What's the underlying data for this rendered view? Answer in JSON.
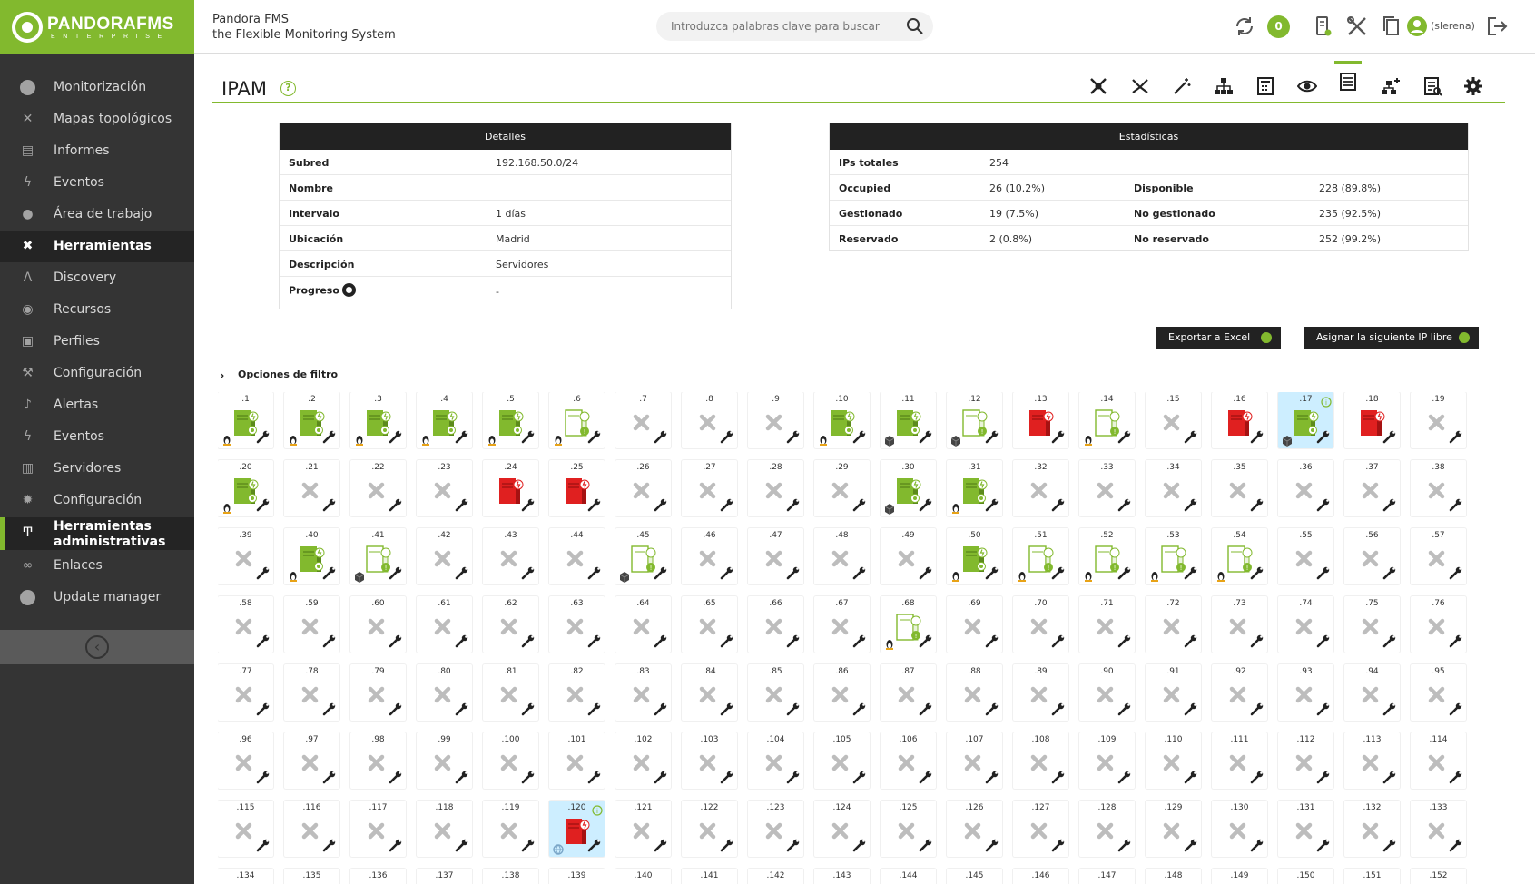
{
  "brand": {
    "logo_text": "PANDORAFMS",
    "logo_sub": "ENTERPRISE",
    "line1": "Pandora FMS",
    "line2": "the Flexible Monitoring System",
    "accent_color": "#82b92e"
  },
  "header": {
    "search_placeholder": "Introduzca palabras clave para buscar",
    "notification_count": "0",
    "user": "(slerena)"
  },
  "sidebar": {
    "items": [
      {
        "label": "Monitorización",
        "icon": "monitor-icon"
      },
      {
        "label": "Mapas topológicos",
        "icon": "topology-icon"
      },
      {
        "label": "Informes",
        "icon": "reports-icon"
      },
      {
        "label": "Eventos",
        "icon": "lightning-icon"
      },
      {
        "label": "Área de trabajo",
        "icon": "user-icon"
      },
      {
        "label": "Herramientas",
        "icon": "tools-icon"
      },
      {
        "label": "Discovery",
        "icon": "discovery-icon"
      },
      {
        "label": "Recursos",
        "icon": "resources-icon"
      },
      {
        "label": "Perfiles",
        "icon": "profile-icon"
      },
      {
        "label": "Configuración",
        "icon": "wrench-icon"
      },
      {
        "label": "Alertas",
        "icon": "bell-icon"
      },
      {
        "label": "Eventos",
        "icon": "lightning-icon"
      },
      {
        "label": "Servidores",
        "icon": "server-icon"
      },
      {
        "label": "Configuración",
        "icon": "gear-icon"
      },
      {
        "label": "Herramientas administrativas",
        "icon": "admin-tools-icon"
      },
      {
        "label": "Enlaces",
        "icon": "link-icon"
      },
      {
        "label": "Update manager",
        "icon": "update-icon"
      }
    ]
  },
  "page": {
    "title": "IPAM",
    "help": "?"
  },
  "details": {
    "header": "Detalles",
    "rows": [
      {
        "key": "Subred",
        "value": "192.168.50.0/24"
      },
      {
        "key": "Nombre",
        "value": ""
      },
      {
        "key": "Intervalo",
        "value": "1 días"
      },
      {
        "key": "Ubicación",
        "value": "Madrid"
      },
      {
        "key": "Descripción",
        "value": "Servidores"
      },
      {
        "key": "Progreso",
        "value": "-"
      }
    ]
  },
  "stats": {
    "header": "Estadísticas",
    "total_label": "IPs totales",
    "total_value": "254",
    "rows": [
      {
        "k1": "Occupied",
        "v1": "26 (10.2%)",
        "k2": "Disponible",
        "v2": "228 (89.8%)"
      },
      {
        "k1": "Gestionado",
        "v1": "19 (7.5%)",
        "k2": "No gestionado",
        "v2": "235 (92.5%)"
      },
      {
        "k1": "Reservado",
        "v1": "2 (0.8%)",
        "k2": "No reservado",
        "v2": "252 (99.2%)"
      }
    ]
  },
  "actions": {
    "export": "Exportar a Excel",
    "assign": "Asignar la siguiente IP libre"
  },
  "filter": {
    "label": "Opciones de filtro",
    "chevron": "›"
  },
  "ip_grid": {
    "columns": 19,
    "cells": [
      {
        "ip": ".1",
        "s": "gm",
        "os": "linux"
      },
      {
        "ip": ".2",
        "s": "gm",
        "os": "linux"
      },
      {
        "ip": ".3",
        "s": "gm",
        "os": "linux"
      },
      {
        "ip": ".4",
        "s": "gm",
        "os": "linux"
      },
      {
        "ip": ".5",
        "s": "gm",
        "os": "linux"
      },
      {
        "ip": ".6",
        "s": "go",
        "os": "linux"
      },
      {
        "ip": ".7",
        "s": "x"
      },
      {
        "ip": ".8",
        "s": "x"
      },
      {
        "ip": ".9",
        "s": "x"
      },
      {
        "ip": ".10",
        "s": "gm",
        "os": "linux"
      },
      {
        "ip": ".11",
        "s": "gm",
        "os": "box"
      },
      {
        "ip": ".12",
        "s": "go",
        "os": "box"
      },
      {
        "ip": ".13",
        "s": "r"
      },
      {
        "ip": ".14",
        "s": "go",
        "os": "linux"
      },
      {
        "ip": ".15",
        "s": "x"
      },
      {
        "ip": ".16",
        "s": "r"
      },
      {
        "ip": ".17",
        "s": "gm",
        "os": "box",
        "hl": true,
        "info": true
      },
      {
        "ip": ".18",
        "s": "r"
      },
      {
        "ip": ".19",
        "s": "x"
      },
      {
        "ip": ".20",
        "s": "gm",
        "os": "linux"
      },
      {
        "ip": ".21",
        "s": "x"
      },
      {
        "ip": ".22",
        "s": "x"
      },
      {
        "ip": ".23",
        "s": "x"
      },
      {
        "ip": ".24",
        "s": "r"
      },
      {
        "ip": ".25",
        "s": "r"
      },
      {
        "ip": ".26",
        "s": "x"
      },
      {
        "ip": ".27",
        "s": "x"
      },
      {
        "ip": ".28",
        "s": "x"
      },
      {
        "ip": ".29",
        "s": "x"
      },
      {
        "ip": ".30",
        "s": "gm",
        "os": "box"
      },
      {
        "ip": ".31",
        "s": "gm",
        "os": "linux"
      },
      {
        "ip": ".32",
        "s": "x"
      },
      {
        "ip": ".33",
        "s": "x"
      },
      {
        "ip": ".34",
        "s": "x"
      },
      {
        "ip": ".35",
        "s": "x"
      },
      {
        "ip": ".36",
        "s": "x"
      },
      {
        "ip": ".37",
        "s": "x"
      },
      {
        "ip": ".38",
        "s": "x"
      },
      {
        "ip": ".39",
        "s": "x"
      },
      {
        "ip": ".40",
        "s": "gm",
        "os": "linux"
      },
      {
        "ip": ".41",
        "s": "go",
        "os": "box"
      },
      {
        "ip": ".42",
        "s": "x"
      },
      {
        "ip": ".43",
        "s": "x"
      },
      {
        "ip": ".44",
        "s": "x"
      },
      {
        "ip": ".45",
        "s": "go",
        "os": "box"
      },
      {
        "ip": ".46",
        "s": "x"
      },
      {
        "ip": ".47",
        "s": "x"
      },
      {
        "ip": ".48",
        "s": "x"
      },
      {
        "ip": ".49",
        "s": "x"
      },
      {
        "ip": ".50",
        "s": "gm",
        "os": "linux"
      },
      {
        "ip": ".51",
        "s": "go",
        "os": "linux"
      },
      {
        "ip": ".52",
        "s": "go",
        "os": "linux"
      },
      {
        "ip": ".53",
        "s": "go",
        "os": "linux"
      },
      {
        "ip": ".54",
        "s": "go",
        "os": "linux"
      },
      {
        "ip": ".55",
        "s": "x"
      },
      {
        "ip": ".56",
        "s": "x"
      },
      {
        "ip": ".57",
        "s": "x"
      },
      {
        "ip": ".58",
        "s": "x"
      },
      {
        "ip": ".59",
        "s": "x"
      },
      {
        "ip": ".60",
        "s": "x"
      },
      {
        "ip": ".61",
        "s": "x"
      },
      {
        "ip": ".62",
        "s": "x"
      },
      {
        "ip": ".63",
        "s": "x"
      },
      {
        "ip": ".64",
        "s": "x"
      },
      {
        "ip": ".65",
        "s": "x"
      },
      {
        "ip": ".66",
        "s": "x"
      },
      {
        "ip": ".67",
        "s": "x"
      },
      {
        "ip": ".68",
        "s": "go",
        "os": "linux"
      },
      {
        "ip": ".69",
        "s": "x"
      },
      {
        "ip": ".70",
        "s": "x"
      },
      {
        "ip": ".71",
        "s": "x"
      },
      {
        "ip": ".72",
        "s": "x"
      },
      {
        "ip": ".73",
        "s": "x"
      },
      {
        "ip": ".74",
        "s": "x"
      },
      {
        "ip": ".75",
        "s": "x"
      },
      {
        "ip": ".76",
        "s": "x"
      },
      {
        "ip": ".77",
        "s": "x"
      },
      {
        "ip": ".78",
        "s": "x"
      },
      {
        "ip": ".79",
        "s": "x"
      },
      {
        "ip": ".80",
        "s": "x"
      },
      {
        "ip": ".81",
        "s": "x"
      },
      {
        "ip": ".82",
        "s": "x"
      },
      {
        "ip": ".83",
        "s": "x"
      },
      {
        "ip": ".84",
        "s": "x"
      },
      {
        "ip": ".85",
        "s": "x"
      },
      {
        "ip": ".86",
        "s": "x"
      },
      {
        "ip": ".87",
        "s": "x"
      },
      {
        "ip": ".88",
        "s": "x"
      },
      {
        "ip": ".89",
        "s": "x"
      },
      {
        "ip": ".90",
        "s": "x"
      },
      {
        "ip": ".91",
        "s": "x"
      },
      {
        "ip": ".92",
        "s": "x"
      },
      {
        "ip": ".93",
        "s": "x"
      },
      {
        "ip": ".94",
        "s": "x"
      },
      {
        "ip": ".95",
        "s": "x"
      },
      {
        "ip": ".96",
        "s": "x"
      },
      {
        "ip": ".97",
        "s": "x"
      },
      {
        "ip": ".98",
        "s": "x"
      },
      {
        "ip": ".99",
        "s": "x"
      },
      {
        "ip": ".100",
        "s": "x"
      },
      {
        "ip": ".101",
        "s": "x"
      },
      {
        "ip": ".102",
        "s": "x"
      },
      {
        "ip": ".103",
        "s": "x"
      },
      {
        "ip": ".104",
        "s": "x"
      },
      {
        "ip": ".105",
        "s": "x"
      },
      {
        "ip": ".106",
        "s": "x"
      },
      {
        "ip": ".107",
        "s": "x"
      },
      {
        "ip": ".108",
        "s": "x"
      },
      {
        "ip": ".109",
        "s": "x"
      },
      {
        "ip": ".110",
        "s": "x"
      },
      {
        "ip": ".111",
        "s": "x"
      },
      {
        "ip": ".112",
        "s": "x"
      },
      {
        "ip": ".113",
        "s": "x"
      },
      {
        "ip": ".114",
        "s": "x"
      },
      {
        "ip": ".115",
        "s": "x"
      },
      {
        "ip": ".116",
        "s": "x"
      },
      {
        "ip": ".117",
        "s": "x"
      },
      {
        "ip": ".118",
        "s": "x"
      },
      {
        "ip": ".119",
        "s": "x"
      },
      {
        "ip": ".120",
        "s": "r",
        "os": "net",
        "hl": true,
        "info": true
      },
      {
        "ip": ".121",
        "s": "x"
      },
      {
        "ip": ".122",
        "s": "x"
      },
      {
        "ip": ".123",
        "s": "x"
      },
      {
        "ip": ".124",
        "s": "x"
      },
      {
        "ip": ".125",
        "s": "x"
      },
      {
        "ip": ".126",
        "s": "x"
      },
      {
        "ip": ".127",
        "s": "x"
      },
      {
        "ip": ".128",
        "s": "x"
      },
      {
        "ip": ".129",
        "s": "x"
      },
      {
        "ip": ".130",
        "s": "x"
      },
      {
        "ip": ".131",
        "s": "x"
      },
      {
        "ip": ".132",
        "s": "x"
      },
      {
        "ip": ".133",
        "s": "x"
      },
      {
        "ip": ".134",
        "s": "x"
      },
      {
        "ip": ".135",
        "s": "x"
      },
      {
        "ip": ".136",
        "s": "x"
      },
      {
        "ip": ".137",
        "s": "x"
      },
      {
        "ip": ".138",
        "s": "x"
      },
      {
        "ip": ".139",
        "s": "x"
      },
      {
        "ip": ".140",
        "s": "x"
      },
      {
        "ip": ".141",
        "s": "x"
      },
      {
        "ip": ".142",
        "s": "x"
      },
      {
        "ip": ".143",
        "s": "x"
      },
      {
        "ip": ".144",
        "s": "x"
      },
      {
        "ip": ".145",
        "s": "x"
      },
      {
        "ip": ".146",
        "s": "x"
      },
      {
        "ip": ".147",
        "s": "x"
      },
      {
        "ip": ".148",
        "s": "x"
      },
      {
        "ip": ".149",
        "s": "x"
      },
      {
        "ip": ".150",
        "s": "x"
      },
      {
        "ip": ".151",
        "s": "x"
      },
      {
        "ip": ".152",
        "s": "x"
      }
    ]
  }
}
